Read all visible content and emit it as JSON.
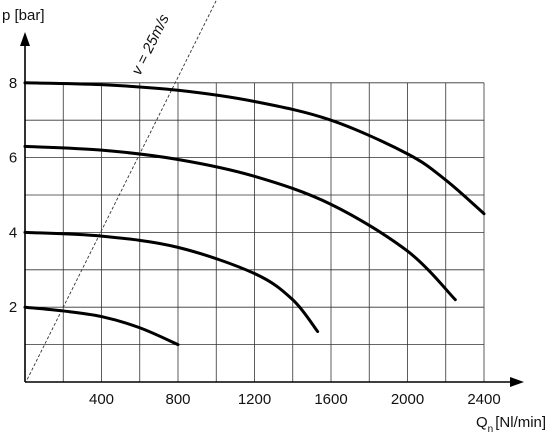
{
  "chart_data": {
    "type": "line",
    "xlabel": "Q",
    "xlabel_sub": "n",
    "xlabel_unit": "[Nl/min]",
    "ylabel": "p [bar]",
    "xlim": [
      0,
      2600
    ],
    "ylim": [
      0,
      8
    ],
    "x_ticks": [
      400,
      800,
      1200,
      1600,
      2000,
      2400
    ],
    "y_ticks": [
      2,
      4,
      6,
      8
    ],
    "grid": true,
    "grid_x_step": 200,
    "grid_y_step": 1,
    "series": [
      {
        "points": [
          [
            0,
            8.0
          ],
          [
            400,
            7.95
          ],
          [
            800,
            7.8
          ],
          [
            1200,
            7.5
          ],
          [
            1600,
            7.0
          ],
          [
            2000,
            6.1
          ],
          [
            2200,
            5.4
          ],
          [
            2400,
            4.5
          ]
        ]
      },
      {
        "points": [
          [
            0,
            6.3
          ],
          [
            400,
            6.2
          ],
          [
            800,
            5.95
          ],
          [
            1200,
            5.5
          ],
          [
            1600,
            4.75
          ],
          [
            2000,
            3.5
          ],
          [
            2250,
            2.2
          ]
        ]
      },
      {
        "points": [
          [
            0,
            4.0
          ],
          [
            400,
            3.9
          ],
          [
            800,
            3.6
          ],
          [
            1200,
            2.9
          ],
          [
            1400,
            2.2
          ],
          [
            1530,
            1.35
          ]
        ]
      },
      {
        "points": [
          [
            0,
            2.0
          ],
          [
            200,
            1.9
          ],
          [
            400,
            1.75
          ],
          [
            600,
            1.45
          ],
          [
            800,
            1.0
          ]
        ]
      }
    ],
    "reference_line": {
      "label": "v = 25m/s",
      "points": [
        [
          0,
          -0.05
        ],
        [
          1000,
          10.2
        ]
      ]
    }
  }
}
